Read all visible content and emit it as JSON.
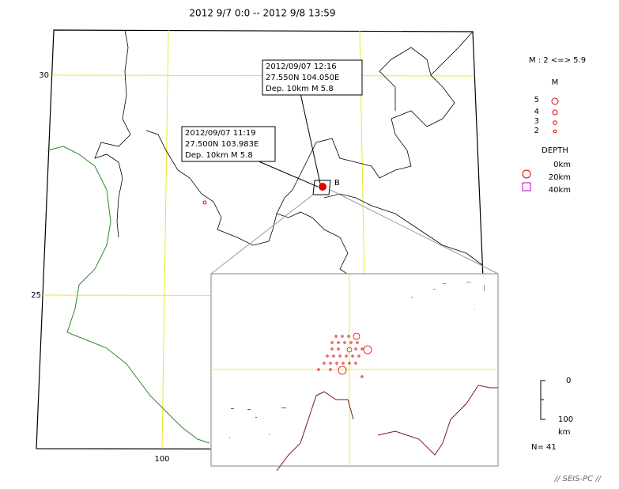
{
  "title": "2012 9/7 0:0 -- 2012 9/8 13:59",
  "map": {
    "lat_labels": [
      "30",
      "25"
    ],
    "lon_labels": [
      "100"
    ],
    "callouts": [
      {
        "lines": [
          "2012/09/07 12:16",
          "27.550N  104.050E",
          "Dep. 10km   M 5.8"
        ]
      },
      {
        "lines": [
          "2012/09/07 11:19",
          "27.500N  103.983E",
          "Dep. 10km   M 5.8"
        ]
      }
    ],
    "inset_label": "B"
  },
  "legend": {
    "magnitude_range": "M : 2 <=> 5.9",
    "magnitude_title": "M",
    "magnitudes": [
      "5",
      "4",
      "3",
      "2"
    ],
    "depth_title": "DEPTH",
    "depths": [
      "0km",
      "20km",
      "40km"
    ]
  },
  "scale": {
    "top": "0",
    "bottom": "100",
    "unit": "km"
  },
  "count": "N= 41",
  "footer": "// SEIS-PC //"
}
